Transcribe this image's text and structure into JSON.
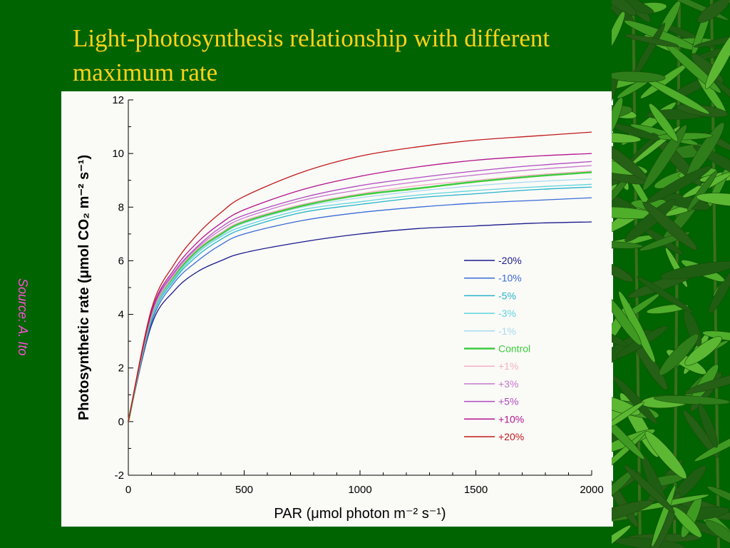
{
  "slide": {
    "title_line1": "Light-photosynthesis relationship with different",
    "title_line2": "maximum rate",
    "source": "Source: A. Ito",
    "background": "#006400",
    "title_color": "#FFD21A",
    "source_color": "#FF4FD8",
    "decoration": "bamboo-leaves"
  },
  "chart_data": {
    "type": "line",
    "ylabel": "Photosynthetic rate (μmol CO₂ m⁻² s⁻¹)",
    "xlabel": "PAR (μmol photon m⁻² s⁻¹)",
    "xlim": [
      0,
      2000
    ],
    "ylim": [
      -2,
      12
    ],
    "x_ticks": [
      "0",
      "500",
      "1000",
      "1500",
      "2000"
    ],
    "y_ticks": [
      "-2",
      "0",
      "2",
      "4",
      "6",
      "8",
      "10",
      "12"
    ],
    "grid": false,
    "legend_position": "right",
    "x": [
      0,
      100,
      200,
      300,
      400,
      500,
      750,
      1000,
      1250,
      1500,
      1750,
      2000
    ],
    "series": [
      {
        "name": "-20%",
        "color": "#1a1a8c",
        "values": [
          0,
          3.6,
          4.9,
          5.6,
          6.0,
          6.3,
          6.7,
          7.0,
          7.2,
          7.3,
          7.4,
          7.45
        ]
      },
      {
        "name": "-10%",
        "color": "#3a6cd6",
        "values": [
          0,
          3.7,
          5.2,
          6.0,
          6.6,
          7.0,
          7.5,
          7.8,
          8.0,
          8.15,
          8.25,
          8.35
        ]
      },
      {
        "name": "-5%",
        "color": "#27b3c9",
        "values": [
          0,
          3.8,
          5.3,
          6.2,
          6.8,
          7.2,
          7.8,
          8.1,
          8.35,
          8.5,
          8.65,
          8.75
        ]
      },
      {
        "name": "-3%",
        "color": "#5fd4de",
        "values": [
          0,
          3.85,
          5.35,
          6.3,
          6.9,
          7.3,
          7.9,
          8.2,
          8.45,
          8.62,
          8.75,
          8.85
        ]
      },
      {
        "name": "-1%",
        "color": "#a8dbf0",
        "values": [
          0,
          3.9,
          5.4,
          6.35,
          6.95,
          7.4,
          8.0,
          8.35,
          8.6,
          8.8,
          8.95,
          9.05
        ]
      },
      {
        "name": "Control",
        "color": "#3dcc3d",
        "width": 2.5,
        "values": [
          0,
          3.95,
          5.45,
          6.4,
          7.0,
          7.45,
          8.05,
          8.45,
          8.7,
          8.95,
          9.15,
          9.3
        ]
      },
      {
        "name": "+1%",
        "color": "#f4b0c4",
        "values": [
          0,
          3.95,
          5.5,
          6.45,
          7.05,
          7.5,
          8.1,
          8.5,
          8.8,
          9.0,
          9.2,
          9.35
        ]
      },
      {
        "name": "+3%",
        "color": "#c777cf",
        "values": [
          0,
          4.0,
          5.55,
          6.5,
          7.15,
          7.6,
          8.25,
          8.65,
          8.95,
          9.2,
          9.4,
          9.55
        ]
      },
      {
        "name": "+5%",
        "color": "#b04ac0",
        "values": [
          0,
          4.05,
          5.6,
          6.55,
          7.25,
          7.7,
          8.35,
          8.8,
          9.1,
          9.35,
          9.55,
          9.7
        ]
      },
      {
        "name": "+10%",
        "color": "#b3148c",
        "values": [
          0,
          4.1,
          5.7,
          6.7,
          7.4,
          7.9,
          8.65,
          9.15,
          9.5,
          9.75,
          9.9,
          10.0
        ]
      },
      {
        "name": "+20%",
        "color": "#c01a1a",
        "values": [
          0,
          4.2,
          5.9,
          7.0,
          7.8,
          8.4,
          9.3,
          9.9,
          10.25,
          10.5,
          10.65,
          10.8
        ]
      }
    ]
  }
}
